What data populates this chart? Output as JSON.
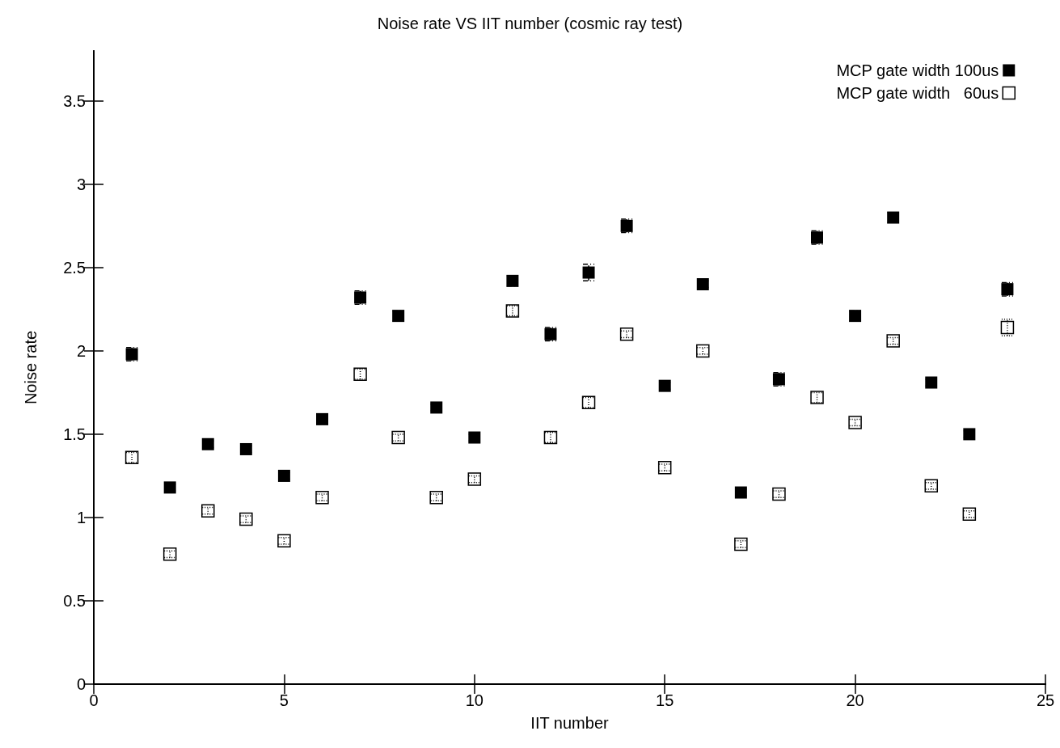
{
  "chart_data": {
    "type": "scatter",
    "title": "Noise rate VS IIT number (cosmic ray test)",
    "xlabel": "IIT number",
    "ylabel": "Noise rate",
    "x": [
      1,
      2,
      3,
      4,
      5,
      6,
      7,
      8,
      9,
      10,
      11,
      12,
      13,
      14,
      15,
      16,
      17,
      18,
      19,
      20,
      21,
      22,
      23,
      24
    ],
    "series": [
      {
        "name": "MCP gate width 100us",
        "color": "#000000",
        "line_style": "dashed",
        "values": [
          1.98,
          1.18,
          1.44,
          1.41,
          1.25,
          1.59,
          2.32,
          2.21,
          1.66,
          1.48,
          2.42,
          2.1,
          2.47,
          2.75,
          1.79,
          2.4,
          1.15,
          1.83,
          2.68,
          2.21,
          2.8,
          1.81,
          1.5,
          2.37
        ],
        "errors": [
          0.04,
          0.02,
          0.02,
          0.02,
          0.02,
          0.03,
          0.04,
          0.03,
          0.02,
          0.02,
          0.03,
          0.04,
          0.05,
          0.04,
          0.02,
          0.02,
          0.02,
          0.04,
          0.04,
          0.03,
          0.03,
          0.02,
          0.02,
          0.04
        ]
      },
      {
        "name": "MCP gate width   60us",
        "color": "#000000",
        "line_style": "dotted",
        "values": [
          1.36,
          0.78,
          1.04,
          0.99,
          0.86,
          1.12,
          1.86,
          1.48,
          1.12,
          1.23,
          2.24,
          1.48,
          1.69,
          2.1,
          1.3,
          2.0,
          0.84,
          1.14,
          1.72,
          1.57,
          2.06,
          1.19,
          1.02,
          2.14
        ],
        "errors": [
          0.03,
          0.02,
          0.02,
          0.02,
          0.02,
          0.02,
          0.03,
          0.02,
          0.02,
          0.02,
          0.03,
          0.03,
          0.03,
          0.02,
          0.02,
          0.02,
          0.02,
          0.02,
          0.03,
          0.02,
          0.02,
          0.02,
          0.02,
          0.05
        ]
      }
    ],
    "marker": "square",
    "legend": "top right",
    "grid": false,
    "xlim": [
      0,
      25
    ],
    "xticks": [
      0,
      5,
      10,
      15,
      20,
      25
    ],
    "ylim": [
      0,
      3.8
    ],
    "yticks": [
      0,
      0.5,
      1,
      1.5,
      2,
      2.5,
      3,
      3.5
    ]
  }
}
